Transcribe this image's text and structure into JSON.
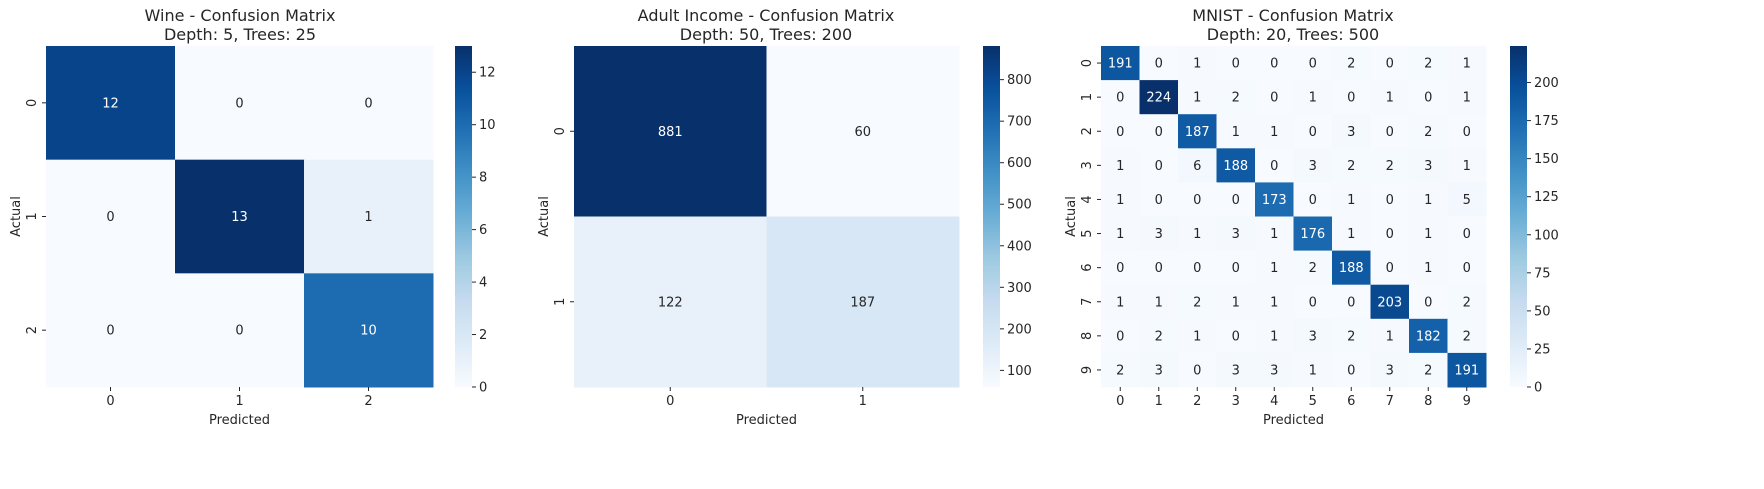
{
  "chart_data": [
    {
      "type": "heatmap",
      "title": "Wine - Confusion Matrix",
      "subtitle": "Depth: 5, Trees: 25",
      "xlabel": "Predicted",
      "ylabel": "Actual",
      "x_categories": [
        "0",
        "1",
        "2"
      ],
      "y_categories": [
        "0",
        "1",
        "2"
      ],
      "values": [
        [
          12,
          0,
          0
        ],
        [
          0,
          13,
          1
        ],
        [
          0,
          0,
          10
        ]
      ],
      "colorbar": {
        "range": [
          0,
          13
        ],
        "ticks": [
          "0",
          "2",
          "4",
          "6",
          "8",
          "10",
          "12"
        ]
      },
      "colormap": "Blues"
    },
    {
      "type": "heatmap",
      "title": "Adult Income - Confusion Matrix",
      "subtitle": "Depth: 50, Trees: 200",
      "xlabel": "Predicted",
      "ylabel": "Actual",
      "x_categories": [
        "0",
        "1"
      ],
      "y_categories": [
        "0",
        "1"
      ],
      "values": [
        [
          881,
          60
        ],
        [
          122,
          187
        ]
      ],
      "colorbar": {
        "range": [
          60,
          881
        ],
        "ticks": [
          "100",
          "200",
          "300",
          "400",
          "500",
          "600",
          "700",
          "800"
        ]
      },
      "colormap": "Blues"
    },
    {
      "type": "heatmap",
      "title": "MNIST - Confusion Matrix",
      "subtitle": "Depth: 20, Trees: 500",
      "xlabel": "Predicted",
      "ylabel": "Actual",
      "x_categories": [
        "0",
        "1",
        "2",
        "3",
        "4",
        "5",
        "6",
        "7",
        "8",
        "9"
      ],
      "y_categories": [
        "0",
        "1",
        "2",
        "3",
        "4",
        "5",
        "6",
        "7",
        "8",
        "9"
      ],
      "values": [
        [
          191,
          0,
          1,
          0,
          0,
          0,
          2,
          0,
          2,
          1
        ],
        [
          0,
          224,
          1,
          2,
          0,
          1,
          0,
          1,
          0,
          1
        ],
        [
          0,
          0,
          187,
          1,
          1,
          0,
          3,
          0,
          2,
          0
        ],
        [
          1,
          0,
          6,
          188,
          0,
          3,
          2,
          2,
          3,
          1
        ],
        [
          1,
          0,
          0,
          0,
          173,
          0,
          1,
          0,
          1,
          5
        ],
        [
          1,
          3,
          1,
          3,
          1,
          176,
          1,
          0,
          1,
          0
        ],
        [
          0,
          0,
          0,
          0,
          1,
          2,
          188,
          0,
          1,
          0
        ],
        [
          1,
          1,
          2,
          1,
          1,
          0,
          0,
          203,
          0,
          2
        ],
        [
          0,
          2,
          1,
          0,
          1,
          3,
          2,
          1,
          182,
          2
        ],
        [
          2,
          3,
          0,
          3,
          3,
          1,
          0,
          3,
          2,
          191
        ]
      ],
      "colorbar": {
        "range": [
          0,
          224
        ],
        "ticks": [
          "0",
          "25",
          "50",
          "75",
          "100",
          "125",
          "150",
          "175",
          "200"
        ]
      },
      "colormap": "Blues"
    }
  ]
}
